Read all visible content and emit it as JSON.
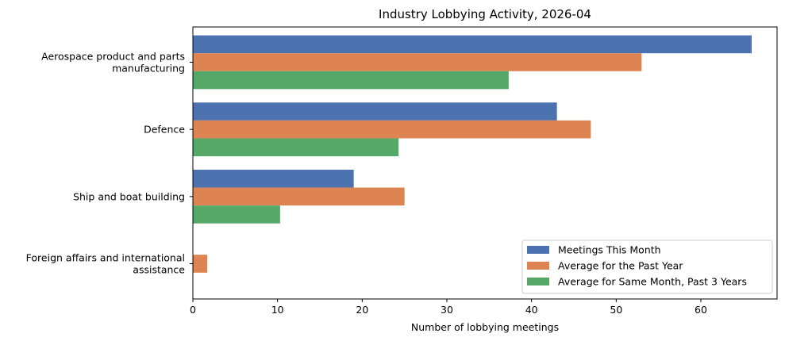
{
  "chart_data": {
    "type": "bar",
    "orientation": "horizontal",
    "title": "Industry Lobbying Activity, 2026-04",
    "xlabel": "Number of lobbying meetings",
    "ylabel": "",
    "xlim": [
      0,
      69
    ],
    "xticks": [
      0,
      10,
      20,
      30,
      40,
      50,
      60
    ],
    "categories": [
      [
        "Aerospace product and parts",
        "manufacturing"
      ],
      [
        "Defence"
      ],
      [
        "Ship and boat building"
      ],
      [
        "Foreign affairs and international",
        "assistance"
      ]
    ],
    "series": [
      {
        "name": "Meetings This Month",
        "color": "#4c72b0",
        "values": [
          66,
          43,
          19,
          0
        ]
      },
      {
        "name": "Average for the Past Year",
        "color": "#dd8452",
        "values": [
          53,
          47,
          25,
          1.7
        ]
      },
      {
        "name": "Average for Same Month, Past 3 Years",
        "color": "#55a868",
        "values": [
          37.3,
          24.3,
          10.3,
          0
        ]
      }
    ],
    "legend_position": "lower-right",
    "grid": false
  }
}
